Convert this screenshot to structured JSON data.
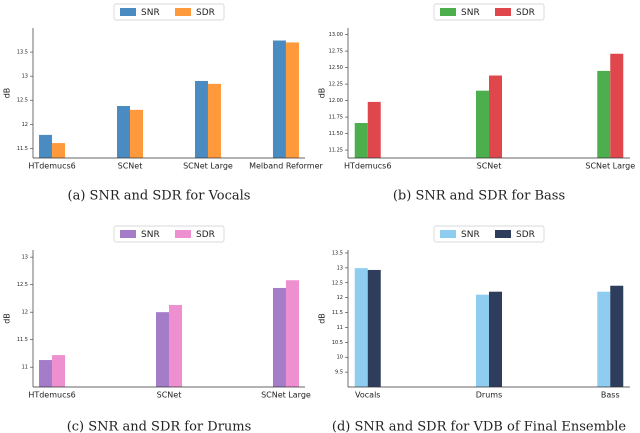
{
  "chart_data": [
    {
      "type": "bar",
      "caption": "(a) SNR and SDR for Vocals",
      "y_label": "dB",
      "categories": [
        "HTdemucs6",
        "SCNet",
        "SCNet Large",
        "Melband Reformer"
      ],
      "series": [
        {
          "name": "SNR",
          "color": "#4a8cc2",
          "values": [
            11.78,
            12.38,
            12.9,
            13.74
          ]
        },
        {
          "name": "SDR",
          "color": "#ff9a3c",
          "values": [
            11.61,
            12.3,
            12.84,
            13.7
          ]
        }
      ],
      "ylim": [
        11.3,
        14.0
      ],
      "yticks": [
        11.5,
        12.0,
        12.5,
        13.0,
        13.5
      ],
      "legend": "top"
    },
    {
      "type": "bar",
      "caption": "(b) SNR and SDR for Bass",
      "y_label": "dB",
      "categories": [
        "HTdemucs6",
        "SCNet",
        "SCNet Large"
      ],
      "series": [
        {
          "name": "SNR",
          "color": "#4cae4c",
          "values": [
            11.66,
            12.15,
            12.45
          ]
        },
        {
          "name": "SDR",
          "color": "#e0474c",
          "values": [
            11.98,
            12.38,
            12.71
          ]
        }
      ],
      "ylim": [
        11.13,
        13.1
      ],
      "yticks": [
        {
          "value": 11.25,
          "label": "11.25"
        },
        {
          "value": 11.5,
          "label": "11.50"
        },
        {
          "value": 11.75,
          "label": "11.75"
        },
        {
          "value": 12,
          "label": "12.00"
        },
        {
          "value": 12.25,
          "label": "12.25"
        },
        {
          "value": 12.5,
          "label": "12.50"
        },
        {
          "value": 12.75,
          "label": "12.75"
        },
        {
          "value": 13,
          "label": "13.00"
        }
      ],
      "legend": "top"
    },
    {
      "type": "bar",
      "caption": "(c) SNR and SDR for Drums",
      "y_label": "dB",
      "categories": [
        "HTdemucs6",
        "SCNet",
        "SCNet Large"
      ],
      "series": [
        {
          "name": "SNR",
          "color": "#a57cc8",
          "values": [
            11.13,
            12.0,
            12.44
          ]
        },
        {
          "name": "SDR",
          "color": "#ee8fd0",
          "values": [
            11.22,
            12.13,
            12.58
          ]
        }
      ],
      "ylim": [
        10.64,
        13.13
      ],
      "yticks": [
        11.0,
        11.5,
        12.0,
        12.5,
        13.0
      ],
      "legend": "top"
    },
    {
      "type": "bar",
      "caption": "(d) SNR and SDR for VDB of Final Ensemble",
      "y_label": "dB",
      "categories": [
        "Vocals",
        "Drums",
        "Bass"
      ],
      "series": [
        {
          "name": "SNR",
          "color": "#8ecdf0",
          "values": [
            12.99,
            12.1,
            12.2
          ]
        },
        {
          "name": "SDR",
          "color": "#2e3d5c",
          "values": [
            12.93,
            12.2,
            12.4
          ]
        }
      ],
      "ylim": [
        9.0,
        13.6
      ],
      "yticks": [
        9.5,
        10.0,
        10.5,
        11.0,
        11.5,
        12.0,
        12.5,
        13.0,
        13.5
      ],
      "legend": "top"
    }
  ]
}
